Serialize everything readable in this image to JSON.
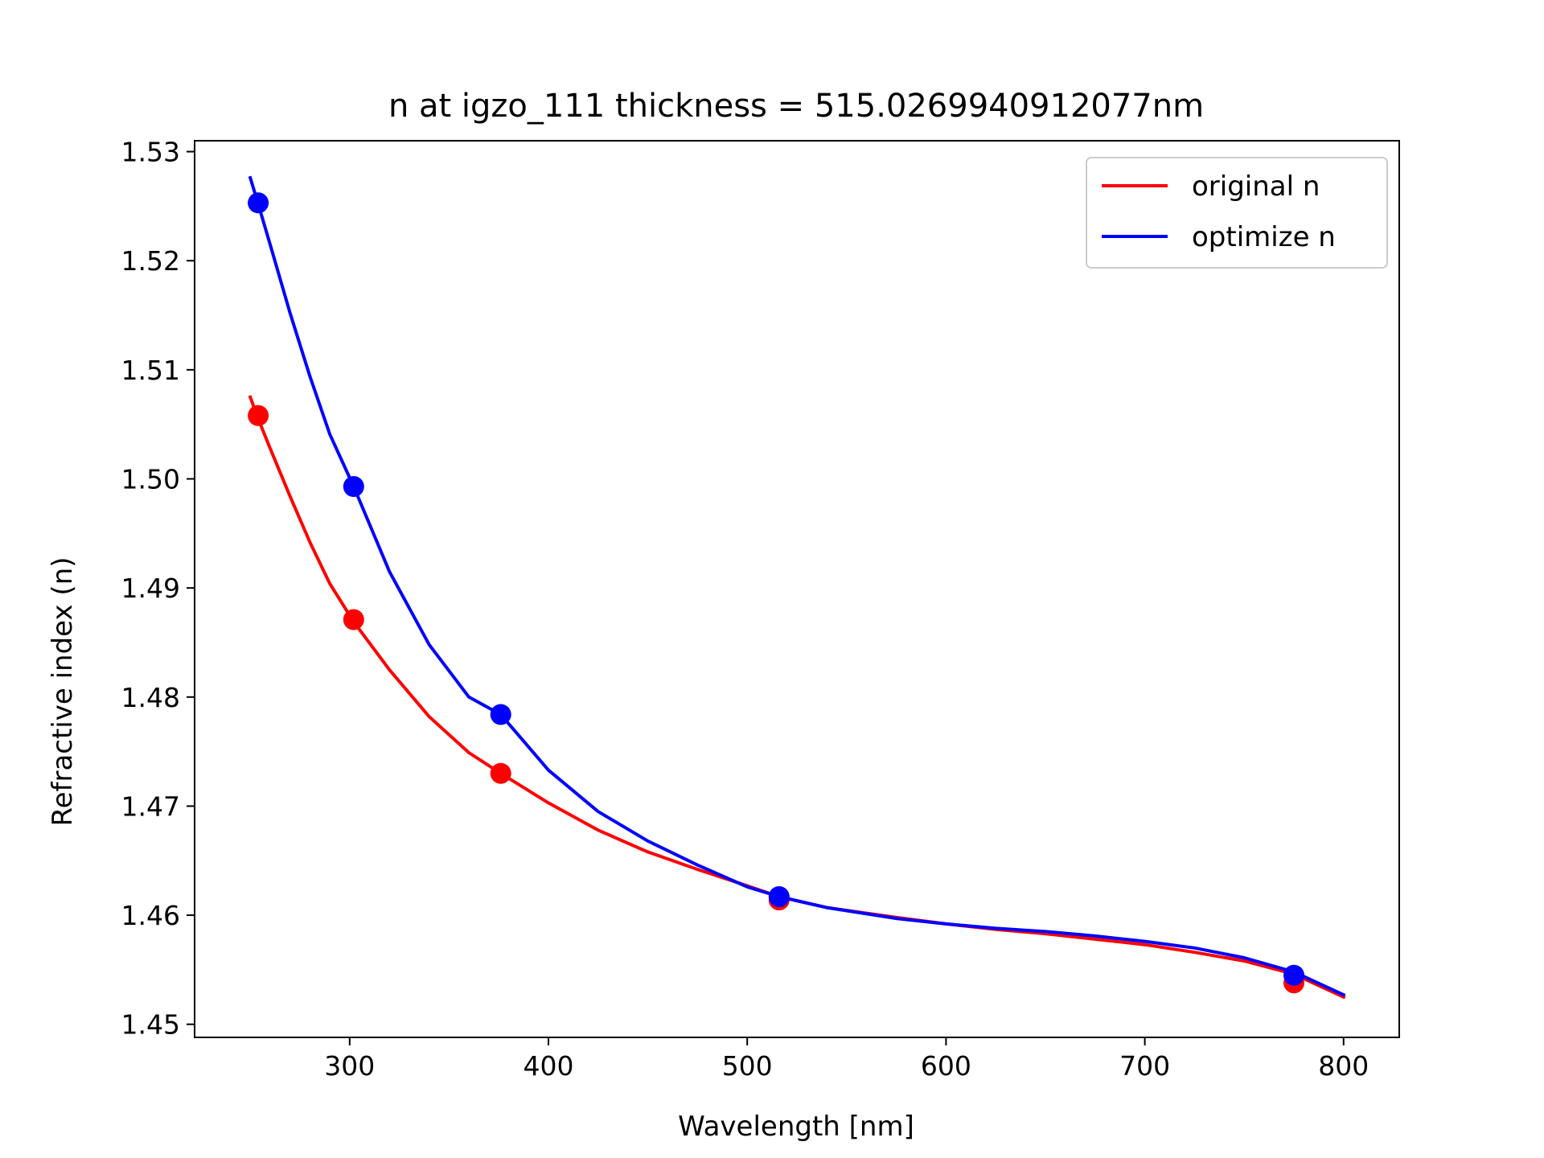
{
  "chart_data": {
    "type": "line",
    "title": "n at igzo_111 thickness = 515.0269940912077nm",
    "xlabel": "Wavelength [nm]",
    "ylabel": "Refractive index (n)",
    "xlim": [
      222,
      828
    ],
    "ylim": [
      1.4488,
      1.531
    ],
    "x_ticks": [
      300,
      400,
      500,
      600,
      700,
      800
    ],
    "y_ticks": [
      1.45,
      1.46,
      1.47,
      1.48,
      1.49,
      1.5,
      1.51,
      1.52,
      1.53
    ],
    "grid": false,
    "legend_position": "top-right",
    "series": [
      {
        "name": "original n",
        "color": "#ff0000",
        "curve": {
          "x": [
            250,
            254,
            260,
            270,
            280,
            290,
            302,
            320,
            340,
            360,
            376,
            400,
            425,
            450,
            475,
            500,
            516,
            540,
            575,
            600,
            625,
            650,
            675,
            700,
            725,
            750,
            775,
            800
          ],
          "y": [
            1.5075,
            1.5055,
            1.5028,
            1.4984,
            1.4942,
            1.4904,
            1.4869,
            1.4825,
            1.4782,
            1.4749,
            1.473,
            1.4703,
            1.4678,
            1.4658,
            1.4642,
            1.4627,
            1.4617,
            1.4607,
            1.4598,
            1.4592,
            1.4587,
            1.4583,
            1.4578,
            1.4573,
            1.4566,
            1.4558,
            1.4546,
            1.4525
          ]
        },
        "points": {
          "x": [
            254,
            302,
            376,
            516,
            775
          ],
          "y": [
            1.5058,
            1.4871,
            1.473,
            1.4614,
            1.4538
          ]
        }
      },
      {
        "name": "optimize n",
        "color": "#0000ff",
        "curve": {
          "x": [
            250,
            254,
            260,
            270,
            280,
            290,
            302,
            320,
            340,
            360,
            376,
            400,
            425,
            450,
            475,
            500,
            516,
            540,
            575,
            600,
            625,
            650,
            675,
            700,
            725,
            750,
            775,
            800
          ],
          "y": [
            1.5276,
            1.5252,
            1.5215,
            1.5152,
            1.5094,
            1.5041,
            1.4993,
            1.4915,
            1.4848,
            1.48,
            1.4784,
            1.4733,
            1.4695,
            1.4668,
            1.4646,
            1.4626,
            1.4617,
            1.4607,
            1.4597,
            1.4592,
            1.4588,
            1.4585,
            1.4581,
            1.4576,
            1.457,
            1.4561,
            1.4548,
            1.4527
          ]
        },
        "points": {
          "x": [
            254,
            302,
            376,
            516,
            775
          ],
          "y": [
            1.5253,
            1.4993,
            1.4784,
            1.4617,
            1.4545
          ]
        }
      }
    ]
  }
}
